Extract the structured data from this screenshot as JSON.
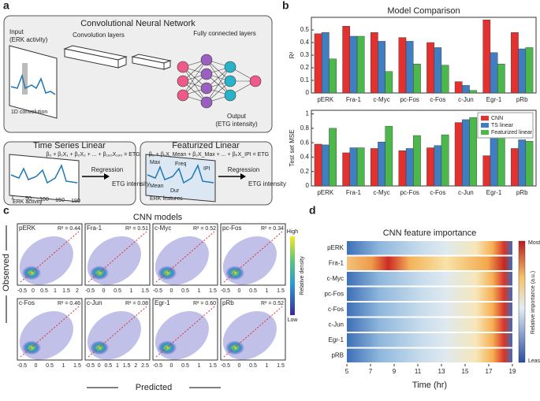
{
  "panel_labels": [
    "a",
    "b",
    "c",
    "d"
  ],
  "a": {
    "title": "Convolutional Neural Network",
    "input": "Input",
    "input_sub": "(ERK activity)",
    "conv1d": "1D convolution",
    "conv_layers": "Convolution layers",
    "fc": "Fully connected layers",
    "output": "Output",
    "output_sub": "(ETG intensity)",
    "ts_title": "Time Series Linear",
    "ts_eq": "β₀ + β₁X₁ + β₂X₂ + ... + β₁₉₀X₁₉₀ = ETG",
    "ts_ticks": [
      "1",
      "50",
      "100",
      "150",
      "190"
    ],
    "ts_axis": "ERK  activity",
    "ts_regression": "Regression",
    "ts_target": "ETG intensity",
    "feat_title": "Featurized Linear",
    "feat_eq": "β₀ + β₁X_Mean + β₂X_Max + ... + βₖX_IPI = ETG",
    "feat_marks": [
      "Max",
      "Freq",
      "IPI",
      "Mean",
      "Dur"
    ],
    "feat_axis": "ERK features",
    "feat_regression": "Regression",
    "feat_target": "ETG intensity"
  },
  "chart_data": [
    {
      "type": "bar",
      "title": "Model Comparison",
      "ylabel": "R²",
      "categories": [
        "pERK",
        "Fra-1",
        "c-Myc",
        "pc-Fos",
        "c-Fos",
        "c-Jun",
        "Egr-1",
        "pRb"
      ],
      "series": [
        {
          "name": "CNN",
          "color": "#e2312f",
          "values": [
            0.47,
            0.53,
            0.48,
            0.44,
            0.4,
            0.09,
            0.58,
            0.48
          ]
        },
        {
          "name": "TS linear",
          "color": "#3f7fc1",
          "values": [
            0.48,
            0.45,
            0.41,
            0.41,
            0.36,
            0.06,
            0.32,
            0.35
          ]
        },
        {
          "name": "Featurized linear",
          "color": "#4cb84c",
          "values": [
            0.27,
            0.45,
            0.17,
            0.23,
            0.22,
            0.02,
            0.23,
            0.36
          ]
        }
      ],
      "ylim": [
        0,
        0.6
      ],
      "yticks": [
        0,
        0.1,
        0.2,
        0.3,
        0.4,
        0.5
      ]
    },
    {
      "type": "bar",
      "ylabel": "Test set MSE",
      "categories": [
        "pERK",
        "Fra-1",
        "c-Myc",
        "pc-Fos",
        "c-Fos",
        "c-Jun",
        "Egr-1",
        "pRb"
      ],
      "series": [
        {
          "name": "CNN",
          "color": "#e2312f",
          "values": [
            0.58,
            0.46,
            0.52,
            0.49,
            0.53,
            0.88,
            0.42,
            0.52
          ]
        },
        {
          "name": "TS linear",
          "color": "#3f7fc1",
          "values": [
            0.57,
            0.53,
            0.61,
            0.52,
            0.56,
            0.92,
            0.68,
            0.64
          ]
        },
        {
          "name": "Featurized linear",
          "color": "#4cb84c",
          "values": [
            0.8,
            0.53,
            0.83,
            0.7,
            0.71,
            0.95,
            0.79,
            0.62
          ]
        }
      ],
      "ylim": [
        0,
        1.05
      ],
      "yticks": [
        0,
        0.2,
        0.4,
        0.6,
        0.8,
        1
      ],
      "legend": "upper right"
    }
  ],
  "c": {
    "title": "CNN models",
    "ylabel": "Observed",
    "xlabel": "Predicted",
    "panels": [
      {
        "name": "pERK",
        "r2": "R² = 0.44",
        "xticks": [
          "-0.5",
          "0",
          "0.5",
          "1",
          "1.5",
          "2"
        ]
      },
      {
        "name": "Fra-1",
        "r2": "R² = 0.51",
        "xticks": [
          "-0.5",
          "0",
          "0.5",
          "1",
          "1.5"
        ]
      },
      {
        "name": "c-Myc",
        "r2": "R² = 0.52",
        "xticks": [
          "-0.5",
          "0",
          "0.5",
          "1",
          "1.5"
        ]
      },
      {
        "name": "pc-Fos",
        "r2": "R² = 0.34",
        "xticks": [
          "-0.5",
          "0",
          "0.5",
          "1",
          "1.5"
        ]
      },
      {
        "name": "c-Fos",
        "r2": "R² = 0.46",
        "xticks": [
          "-0.5",
          "0",
          "0.5",
          "1",
          "1.5"
        ]
      },
      {
        "name": "c-Jun",
        "r2": "R² = 0.08",
        "xticks": [
          "-0.5",
          "0",
          "0.5",
          "1",
          "1.5",
          "2",
          "2.5"
        ]
      },
      {
        "name": "Egr-1",
        "r2": "R² = 0.60",
        "xticks": [
          "-0.5",
          "0",
          "0.5",
          "1",
          "1.5"
        ]
      },
      {
        "name": "pRb",
        "r2": "R² = 0.52",
        "xticks": [
          "-0.5",
          "0",
          "0.5",
          "1",
          "1.5"
        ]
      }
    ],
    "colorbar": {
      "high": "High",
      "label": "Relative density",
      "low": "Low"
    }
  },
  "d": {
    "title": "CNN feature importance",
    "rows": [
      "pERK",
      "Fra-1",
      "c-Myc",
      "pc-Fos",
      "c-Fos",
      "c-Jun",
      "Egr-1",
      "pRB"
    ],
    "xticks": [
      5,
      7,
      9,
      11,
      13,
      15,
      17,
      19
    ],
    "xlabel": "Time (hr)",
    "colorbar": {
      "high": "Most",
      "label": "Relative importance (a.u.)",
      "low": "Least"
    }
  }
}
